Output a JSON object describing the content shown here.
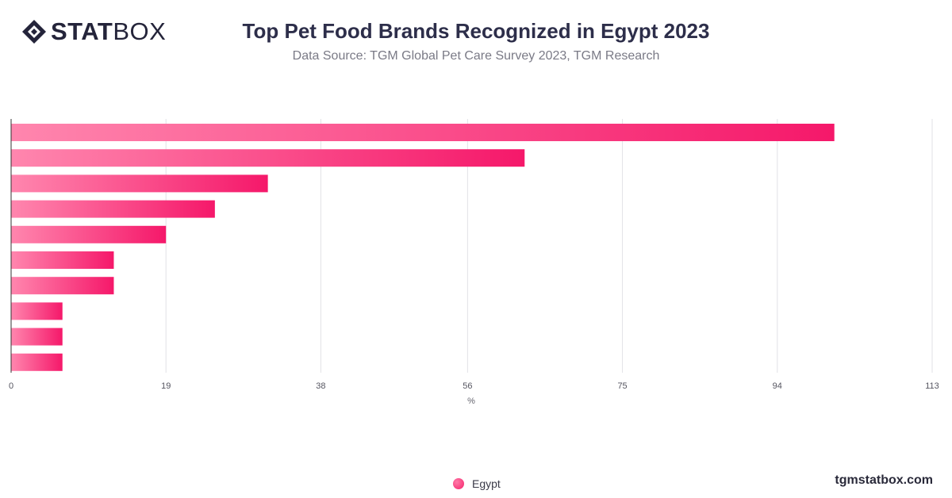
{
  "brand": {
    "logo_bold": "STAT",
    "logo_light": "BOX",
    "site": "tgmstatbox.com"
  },
  "header": {
    "title": "Top Pet Food Brands Recognized in Egypt 2023",
    "subtitle": "Data Source: TGM Global Pet Care Survey 2023, TGM Research"
  },
  "legend": {
    "items": [
      {
        "label": "Egypt",
        "color": "#f5226b"
      }
    ]
  },
  "chart_data": {
    "type": "bar",
    "orientation": "horizontal",
    "title": "Top Pet Food Brands Recognized in Egypt 2023",
    "xlabel": "%",
    "ylabel": "",
    "xlim": [
      0,
      113
    ],
    "x_ticks": [
      "0",
      "19",
      "38",
      "56",
      "75",
      "94",
      "113"
    ],
    "grid": true,
    "legend_position": "bottom",
    "categories": [
      "",
      "",
      "",
      "",
      "",
      "",
      "",
      "",
      "",
      ""
    ],
    "series": [
      {
        "name": "Egypt",
        "color_start": "#ff86ae",
        "color_end": "#f5186a",
        "values": [
          101,
          63,
          31.5,
          25,
          19,
          12.6,
          12.6,
          6.3,
          6.3,
          6.3
        ]
      }
    ]
  }
}
